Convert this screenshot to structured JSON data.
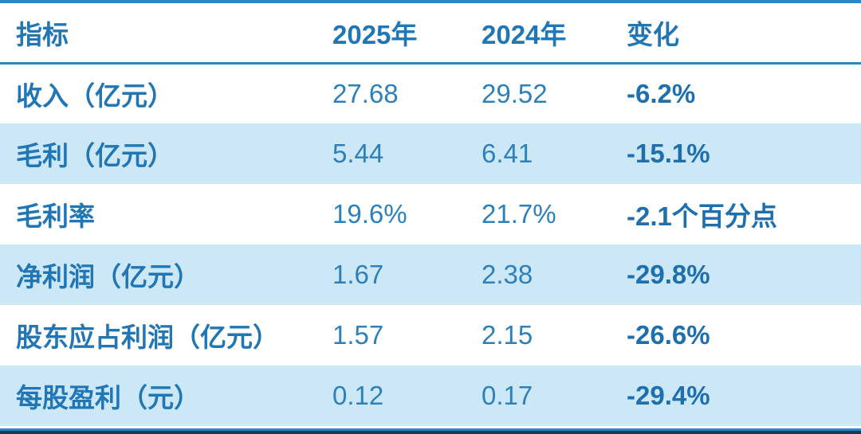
{
  "colors": {
    "accent_blue": "#2e86c1",
    "row_alt_blue": "#cce8f6",
    "text_blue": "#2176b5",
    "value_blue": "#2e80ba",
    "bottom_navy": "#1b3a57"
  },
  "chart_data": {
    "type": "table",
    "title": "",
    "columns": [
      "指标",
      "2025年",
      "2024年",
      "变化"
    ],
    "rows": [
      [
        "收入（亿元）",
        "27.68",
        "29.52",
        "-6.2%"
      ],
      [
        "毛利（亿元）",
        "5.44",
        "6.41",
        "-15.1%"
      ],
      [
        "毛利率",
        "19.6%",
        "21.7%",
        "-2.1个百分点"
      ],
      [
        "净利润（亿元）",
        "1.67",
        "2.38",
        "-29.8%"
      ],
      [
        "股东应占利润（亿元）",
        "1.57",
        "2.15",
        "-26.6%"
      ],
      [
        "每股盈利（元）",
        "0.12",
        "0.17",
        "-29.4%"
      ]
    ],
    "layout": {
      "striped": true,
      "stripe_rows": "even data rows light blue",
      "header_rule_color": "#2e86c1",
      "top_rule_color": "#2e86c1",
      "bottom_rule_colors": [
        "#2e86c1",
        "#1b3a57"
      ]
    }
  }
}
